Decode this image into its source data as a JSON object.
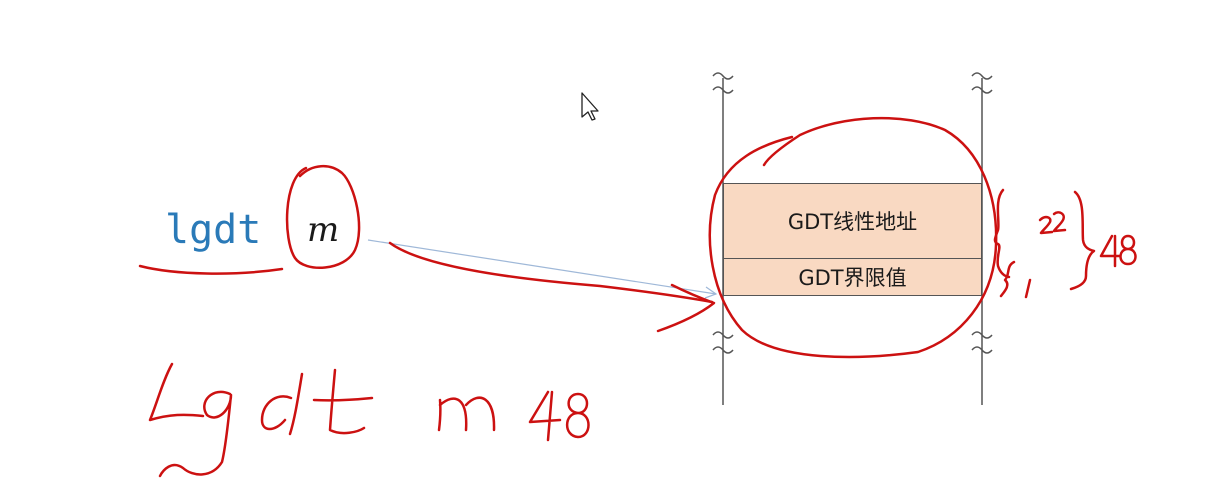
{
  "instruction": {
    "mnemonic": "lgdt",
    "operand": "m"
  },
  "memory": {
    "cells": [
      {
        "label": "GDT线性地址"
      },
      {
        "label": "GDT界限值"
      }
    ],
    "break_mark": "≈"
  },
  "colors": {
    "annotation": "#cc1111",
    "cell_fill": "#f9d9c2",
    "mnemonic": "#2a7ab8",
    "arrow": "#9fb8d8"
  },
  "cursor": {
    "icon": "arrow-pointer"
  }
}
